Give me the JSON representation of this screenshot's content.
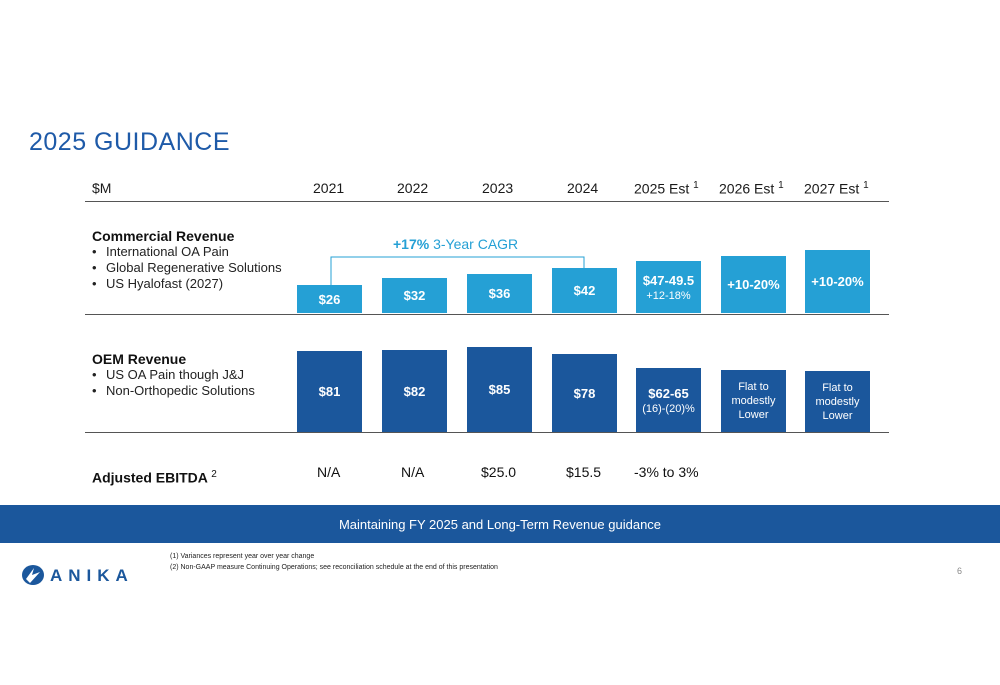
{
  "title": "2025 GUIDANCE",
  "header": {
    "unit": "$M",
    "years": [
      "2021",
      "2022",
      "2023",
      "2024",
      "2025 Est",
      "2026 Est",
      "2027 Est"
    ],
    "est_sup": "1"
  },
  "commercial": {
    "title": "Commercial Revenue",
    "bullets": [
      "International OA Pain",
      "Global Regenerative Solutions",
      "US Hyalofast (2027)"
    ],
    "cagr_bold": "+17%",
    "cagr_text": "3-Year CAGR",
    "bars": [
      {
        "label": "$26",
        "value": 26
      },
      {
        "label": "$32",
        "value": 32
      },
      {
        "label": "$36",
        "value": 36
      },
      {
        "label": "$42",
        "value": 42
      },
      {
        "label": "$47-49.5",
        "sub": "+12-18%",
        "value": 48.25
      },
      {
        "label": "+10-20%",
        "value": 53
      },
      {
        "label": "+10-20%",
        "value": 58
      }
    ]
  },
  "oem": {
    "title": "OEM Revenue",
    "bullets": [
      "US OA Pain though J&J",
      "Non-Orthopedic Solutions"
    ],
    "bars": [
      {
        "label": "$81",
        "value": 81
      },
      {
        "label": "$82",
        "value": 82
      },
      {
        "label": "$85",
        "value": 85
      },
      {
        "label": "$78",
        "value": 78
      },
      {
        "label": "$62-65",
        "sub": "(16)-(20)%",
        "value": 63.5
      },
      {
        "label": "Flat to modestly Lower",
        "lines": [
          "Flat to",
          "modestly",
          "Lower"
        ],
        "value": 62
      },
      {
        "label": "Flat to modestly Lower",
        "lines": [
          "Flat to",
          "modestly",
          "Lower"
        ],
        "value": 61
      }
    ]
  },
  "ebitda": {
    "title": "Adjusted EBITDA",
    "sup": "2",
    "values": [
      "N/A",
      "N/A",
      "$25.0",
      "$15.5",
      "-3% to 3%"
    ]
  },
  "banner": "Maintaining FY 2025 and Long-Term Revenue guidance",
  "footnotes": [
    "(1)   Variances represent year over year change",
    "(2)   Non-GAAP measure Continuing Operations; see reconciliation schedule at the end of this presentation"
  ],
  "logo": "ANIKA",
  "page_number": "6",
  "colors": {
    "title": "#1e5aa8",
    "commercial_bar": "#25a0d5",
    "oem_bar": "#1b579c",
    "banner": "#1b579c"
  }
}
